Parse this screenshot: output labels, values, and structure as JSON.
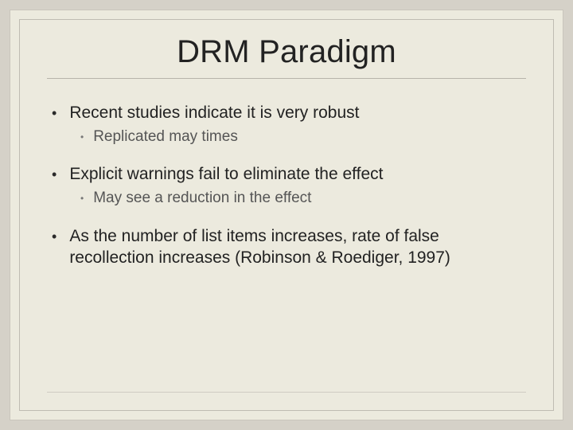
{
  "colors": {
    "page_bg": "#d5d1c8",
    "slide_bg": "#eceade",
    "outer_border": "#c9c6bd",
    "inner_border": "#bfbcb2",
    "rule": "#b7b4aa",
    "bottom_rule": "#cfccc2",
    "text_primary": "#222222",
    "text_secondary": "#555555",
    "bullet_secondary": "#777777"
  },
  "typography": {
    "title_fontsize": 40,
    "l1_fontsize": 21,
    "l2_fontsize": 19,
    "font_family": "Arial"
  },
  "title": "DRM Paradigm",
  "bullets": [
    {
      "text": "Recent studies indicate it is very robust",
      "children": [
        {
          "text": "Replicated may times"
        }
      ]
    },
    {
      "text": "Explicit warnings fail to eliminate the effect",
      "children": [
        {
          "text": "May see a reduction in the effect"
        }
      ]
    },
    {
      "text": "As the number of list items increases, rate of false recollection increases (Robinson & Roediger, 1997)",
      "children": []
    }
  ]
}
